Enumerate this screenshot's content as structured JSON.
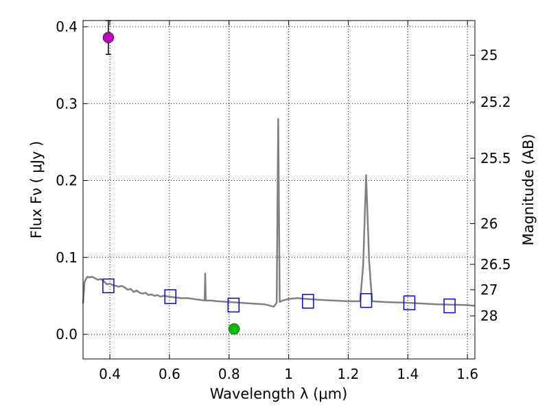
{
  "chart_data": {
    "type": "scatter",
    "title": "",
    "xlabel": "Wavelength  λ (μm)",
    "ylabel": "Flux  Fν  ( μJy )",
    "y2label": "Magnitude (AB)",
    "xlim": [
      0.31,
      1.625
    ],
    "ylim": [
      -0.032,
      0.408
    ],
    "grid": true,
    "x_ticks": [
      0.4,
      0.6,
      0.8,
      1.0,
      1.2,
      1.4,
      1.6
    ],
    "x_tick_labels": [
      "0.4",
      "0.6",
      "0.8",
      "1",
      "1.2",
      "1.4",
      "1.6"
    ],
    "y_ticks": [
      0.0,
      0.1,
      0.2,
      0.3,
      0.4
    ],
    "y_tick_labels": [
      "0.0",
      "0.1",
      "0.2",
      "0.3",
      "0.4"
    ],
    "y2_ticks": [
      {
        "flux": 0.363,
        "label": "25"
      },
      {
        "flux": 0.302,
        "label": "25.2"
      },
      {
        "flux": 0.229,
        "label": "25.5"
      },
      {
        "flux": 0.144,
        "label": "26"
      },
      {
        "flux": 0.091,
        "label": "26.5"
      },
      {
        "flux": 0.058,
        "label": "27"
      },
      {
        "flux": 0.024,
        "label": "28"
      }
    ],
    "colors": {
      "spectrum": "#808080",
      "model_box": "#0000ff",
      "point_magenta": "#bf00bf",
      "point_green": "#00bf00",
      "errorbar": "#000000",
      "grid": "#000000"
    },
    "spectrum": [
      [
        0.31,
        0.04
      ],
      [
        0.315,
        0.068
      ],
      [
        0.32,
        0.072
      ],
      [
        0.325,
        0.075
      ],
      [
        0.33,
        0.074
      ],
      [
        0.34,
        0.075
      ],
      [
        0.35,
        0.073
      ],
      [
        0.36,
        0.071
      ],
      [
        0.37,
        0.072
      ],
      [
        0.38,
        0.069
      ],
      [
        0.39,
        0.065
      ],
      [
        0.4,
        0.066
      ],
      [
        0.41,
        0.064
      ],
      [
        0.42,
        0.063
      ],
      [
        0.43,
        0.062
      ],
      [
        0.44,
        0.063
      ],
      [
        0.45,
        0.061
      ],
      [
        0.46,
        0.058
      ],
      [
        0.47,
        0.059
      ],
      [
        0.48,
        0.055
      ],
      [
        0.49,
        0.057
      ],
      [
        0.5,
        0.054
      ],
      [
        0.51,
        0.053
      ],
      [
        0.52,
        0.054
      ],
      [
        0.53,
        0.051
      ],
      [
        0.54,
        0.052
      ],
      [
        0.55,
        0.05
      ],
      [
        0.56,
        0.051
      ],
      [
        0.57,
        0.049
      ],
      [
        0.58,
        0.05
      ],
      [
        0.6,
        0.049
      ],
      [
        0.62,
        0.048
      ],
      [
        0.64,
        0.047
      ],
      [
        0.66,
        0.047
      ],
      [
        0.68,
        0.046
      ],
      [
        0.7,
        0.045
      ],
      [
        0.718,
        0.044
      ],
      [
        0.72,
        0.079
      ],
      [
        0.722,
        0.044
      ],
      [
        0.74,
        0.044
      ],
      [
        0.76,
        0.043
      ],
      [
        0.8,
        0.042
      ],
      [
        0.84,
        0.041
      ],
      [
        0.88,
        0.04
      ],
      [
        0.92,
        0.039
      ],
      [
        0.95,
        0.036
      ],
      [
        0.96,
        0.041
      ],
      [
        0.965,
        0.28
      ],
      [
        0.97,
        0.042
      ],
      [
        0.98,
        0.044
      ],
      [
        1.0,
        0.046
      ],
      [
        1.03,
        0.047
      ],
      [
        1.06,
        0.046
      ],
      [
        1.1,
        0.045
      ],
      [
        1.15,
        0.044
      ],
      [
        1.2,
        0.043
      ],
      [
        1.24,
        0.043
      ],
      [
        1.25,
        0.09
      ],
      [
        1.26,
        0.207
      ],
      [
        1.27,
        0.095
      ],
      [
        1.28,
        0.043
      ],
      [
        1.32,
        0.042
      ],
      [
        1.4,
        0.041
      ],
      [
        1.5,
        0.039
      ],
      [
        1.6,
        0.038
      ],
      [
        1.625,
        0.037
      ]
    ],
    "model_points": [
      {
        "x": 0.395,
        "y": 0.063
      },
      {
        "x": 0.603,
        "y": 0.049
      },
      {
        "x": 0.815,
        "y": 0.038
      },
      {
        "x": 1.065,
        "y": 0.043
      },
      {
        "x": 1.26,
        "y": 0.044
      },
      {
        "x": 1.405,
        "y": 0.041
      },
      {
        "x": 1.54,
        "y": 0.037
      }
    ],
    "observed_points": [
      {
        "x": 0.395,
        "y": 0.386,
        "yerr": 0.022,
        "color": "magenta"
      },
      {
        "x": 0.817,
        "y": 0.007,
        "yerr": 0.006,
        "color": "green"
      }
    ]
  }
}
